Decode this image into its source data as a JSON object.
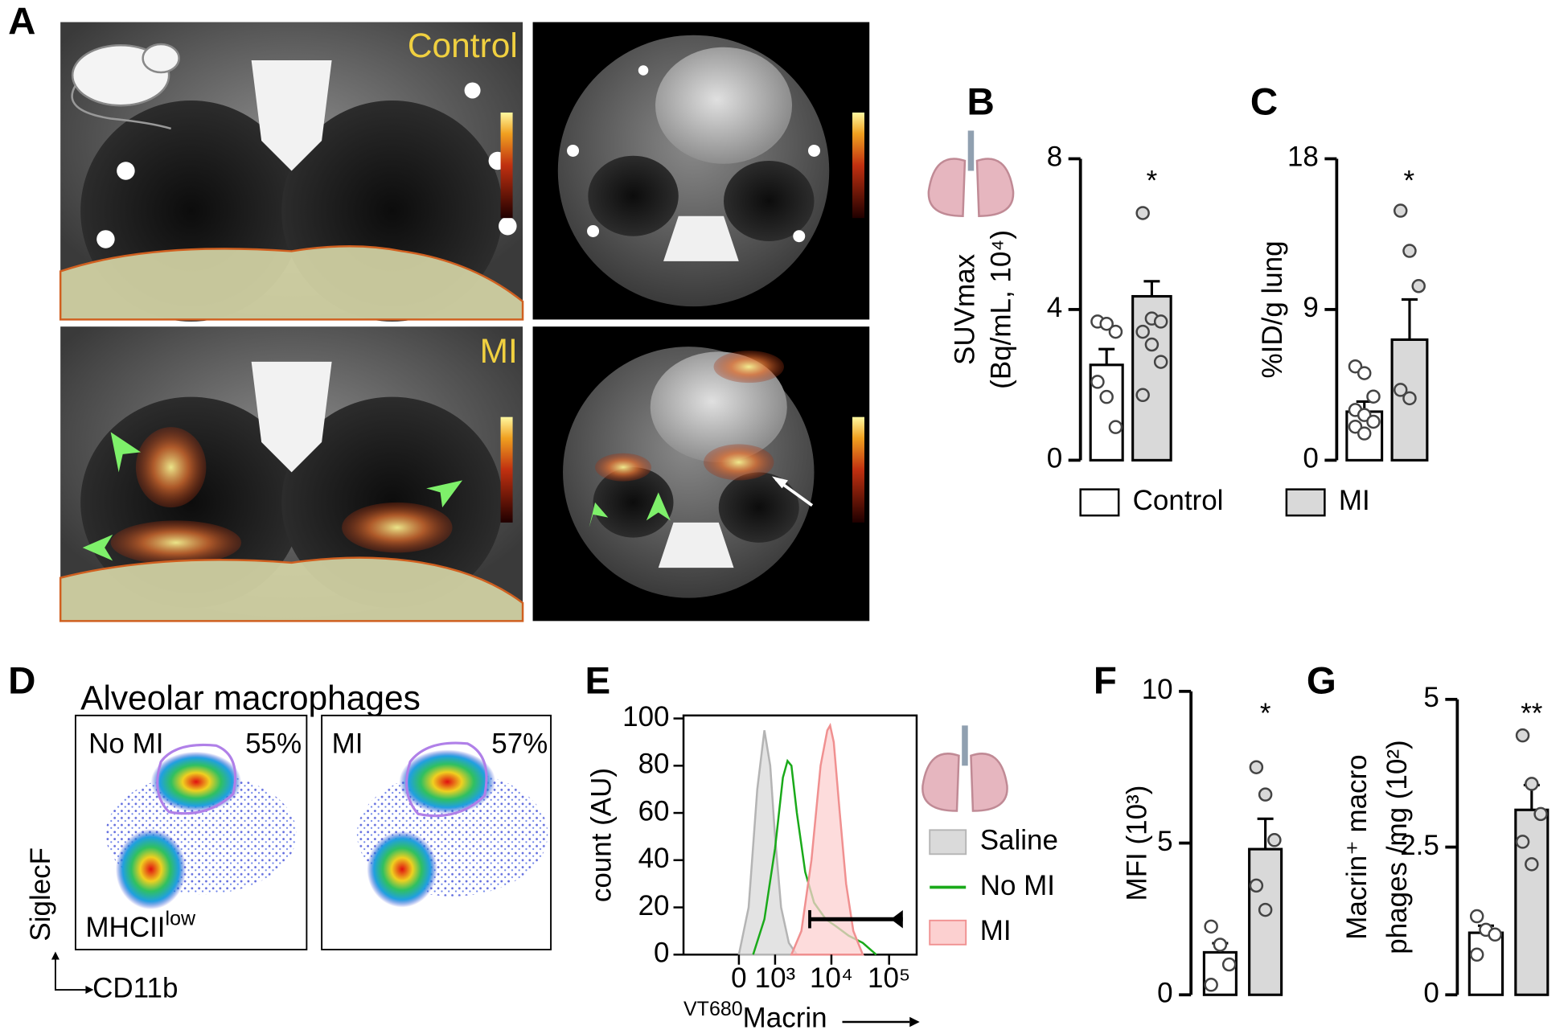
{
  "panel_labels": [
    "A",
    "B",
    "C",
    "D",
    "E",
    "F",
    "G"
  ],
  "imaging": {
    "top_label": "Control",
    "bottom_label": "MI"
  },
  "flow": {
    "title": "Alveolar macrophages",
    "plots": [
      {
        "label": "No MI",
        "gate_percent": "55%"
      },
      {
        "label": "MI",
        "gate_percent": "57%"
      }
    ],
    "gate_label": "MHCII",
    "gate_label_sup": "low",
    "y_axis": "SiglecF",
    "x_axis": "CD11b"
  },
  "chart_data": [
    {
      "type": "bar",
      "ylabel": [
        "SUVmax",
        "(Bq/mL, 10⁴)"
      ],
      "ylim": [
        0,
        8
      ],
      "yticks": [
        0,
        4,
        8
      ],
      "significance": "*",
      "legend": "bottom",
      "series": [
        {
          "name": "Control",
          "color": "#ffffff",
          "value": 2.53,
          "error": 0.42,
          "points": [
            3.68,
            3.62,
            3.41,
            2.08,
            1.68,
            0.88
          ]
        },
        {
          "name": "MI",
          "color": "#d9d9d9",
          "value": 4.35,
          "error": 0.4,
          "points": [
            6.56,
            3.76,
            3.68,
            3.41,
            3.07,
            2.61,
            1.73
          ]
        }
      ]
    },
    {
      "type": "bar",
      "ylabel": [
        "%ID/g lung"
      ],
      "ylim": [
        0,
        18
      ],
      "yticks": [
        0,
        9,
        18
      ],
      "significance": "*",
      "series": [
        {
          "color": "#ffffff",
          "value": 2.9,
          "error": 0.6,
          "points": [
            5.6,
            5.2,
            3.8,
            3.0,
            2.7,
            2.3,
            2.0,
            1.6
          ]
        },
        {
          "color": "#d9d9d9",
          "value": 7.2,
          "error": 2.4,
          "points": [
            14.9,
            12.5,
            10.4,
            4.2,
            3.7
          ]
        }
      ]
    },
    {
      "type": "histogram",
      "ylabel": "count (AU)",
      "xlabel_sup": "VT680",
      "xlabel": "Macrin",
      "xscale": "biexponential",
      "xlim": [
        -2250,
        300000
      ],
      "ylim": [
        0,
        100
      ],
      "yticks": [
        0,
        20,
        40,
        60,
        80,
        100
      ],
      "xticks": [
        0,
        {
          "value": 1000,
          "label": "10³"
        },
        {
          "value": 10000,
          "label": "10⁴"
        },
        {
          "value": 100000,
          "label": "10⁵"
        }
      ],
      "legend": "right",
      "series": [
        {
          "name": "Saline",
          "color": "#b4b4b4",
          "fill": "#dadada",
          "x": [
            0,
            200,
            400,
            600,
            800,
            1000,
            1300,
            1800,
            2500
          ],
          "values": [
            0,
            20,
            70,
            95,
            80,
            50,
            20,
            5,
            0
          ]
        },
        {
          "name": "No MI",
          "color": "#1aaa1a",
          "fill": null,
          "x": [
            300,
            600,
            1000,
            1400,
            1700,
            2000,
            2500,
            3500,
            5000,
            8000,
            12000,
            20000,
            35000,
            60000
          ],
          "values": [
            0,
            15,
            45,
            75,
            82,
            80,
            60,
            35,
            22,
            15,
            12,
            8,
            5,
            0
          ]
        },
        {
          "name": "MI",
          "color": "#f09090",
          "fill": "#fcd0d0",
          "x": [
            2000,
            3000,
            4500,
            6500,
            8500,
            9500,
            11000,
            14000,
            18000,
            24000,
            35000
          ],
          "values": [
            0,
            10,
            40,
            80,
            95,
            97,
            90,
            60,
            30,
            10,
            0
          ]
        }
      ],
      "gate": {
        "x": [
          4200,
          173000
        ],
        "y": 15
      }
    },
    {
      "type": "bar",
      "ylabel": [
        "MFI (10³)"
      ],
      "ylim": [
        0,
        10
      ],
      "yticks": [
        0,
        5,
        10
      ],
      "significance": "*",
      "series": [
        {
          "color": "#ffffff",
          "value": 1.4,
          "error": 0.3,
          "points": [
            2.25,
            1.65,
            1.0,
            0.33
          ]
        },
        {
          "color": "#d9d9d9",
          "value": 4.8,
          "error": 1.0,
          "points": [
            7.5,
            6.6,
            5.1,
            3.6,
            2.8
          ]
        }
      ]
    },
    {
      "type": "bar",
      "ylabel": [
        "Macrin⁺ macro",
        "phages /mg (10²)"
      ],
      "ylim": [
        0,
        5
      ],
      "yticks": [
        0,
        2.5,
        5
      ],
      "significance": "**",
      "series": [
        {
          "color": "#ffffff",
          "value": 1.05,
          "error": 0.12,
          "points": [
            1.33,
            1.1,
            1.02,
            0.68
          ]
        },
        {
          "color": "#d9d9d9",
          "value": 3.13,
          "error": 0.42,
          "points": [
            4.39,
            3.57,
            3.06,
            2.59,
            2.21
          ]
        }
      ]
    }
  ]
}
